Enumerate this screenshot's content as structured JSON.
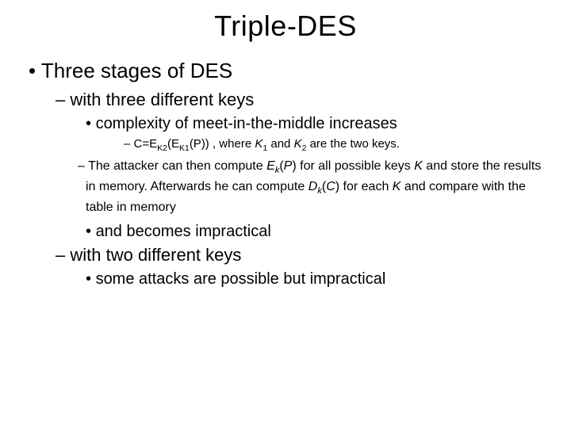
{
  "title": "Triple-DES",
  "l1_1": "Three stages of DES",
  "l2_1": "with three different keys",
  "l3_1": "complexity of meet-in-the-middle increases",
  "l4_formula_prefix": "C=E",
  "l4_formula_sub1": "K2",
  "l4_formula_mid1": "(E",
  "l4_formula_sub2": "K1",
  "l4_formula_mid2": "(P)) , where ",
  "l4_formula_k1": "K",
  "l4_formula_k1sub": "1",
  "l4_formula_and": " and ",
  "l4_formula_k2": "K",
  "l4_formula_k2sub": "2",
  "l4_formula_suffix": " are the two keys.",
  "l2b_attack_p1": "The attacker can then compute ",
  "l2b_attack_ek": "E",
  "l2b_attack_eksub": "k",
  "l2b_attack_p2": "(",
  "l2b_attack_P": "P",
  "l2b_attack_p3": ") for all possible keys ",
  "l2b_attack_K": "K",
  "l2b_attack_p4": " and store the results in memory. Afterwards he can compute ",
  "l2b_attack_dk": "D",
  "l2b_attack_dksub": "k",
  "l2b_attack_p5": "(",
  "l2b_attack_C": "C",
  "l2b_attack_p6": ") for each ",
  "l2b_attack_K2": "K",
  "l2b_attack_p7": " and compare with the table in memory",
  "l3_2": "and becomes impractical",
  "l2_2": "with two different keys",
  "l3_3": "some attacks are possible but impractical",
  "style": {
    "background_color": "#ffffff",
    "text_color": "#000000",
    "title_fontsize": 36,
    "l1_fontsize": 26,
    "l2_fontsize": 22,
    "l3_fontsize": 20,
    "l4_fontsize": 15,
    "l2b_fontsize": 16,
    "font_family": "Arial"
  }
}
